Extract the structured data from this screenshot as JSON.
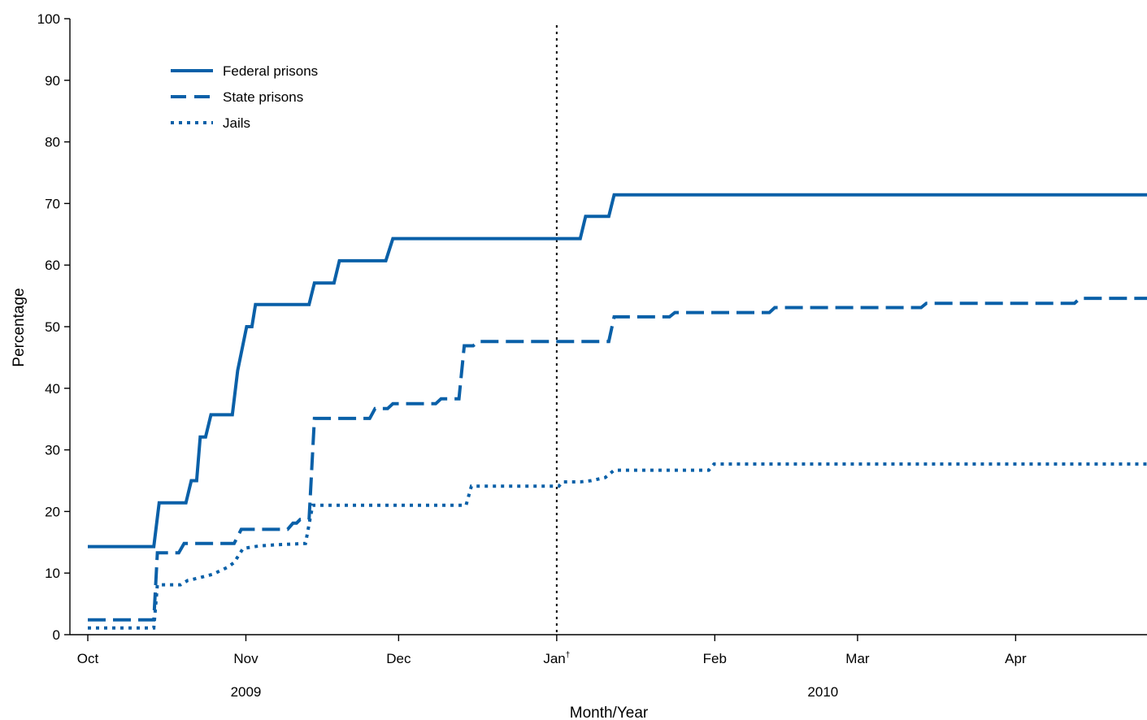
{
  "chart_data": {
    "type": "line",
    "title": "",
    "xlabel": "Month/Year",
    "ylabel": "Percentage",
    "ylim": [
      0,
      100
    ],
    "yticks": [
      0,
      10,
      20,
      30,
      40,
      50,
      60,
      70,
      80,
      90,
      100
    ],
    "grid": false,
    "legend_position": "top-left",
    "x_unit": "weeks from Oct 1, 2009",
    "xlim": [
      0,
      29.85
    ],
    "month_ticks": [
      {
        "label": "Oct",
        "x": 0
      },
      {
        "label": "Nov",
        "x": 4.43
      },
      {
        "label": "Dec",
        "x": 8.71
      },
      {
        "label": "Jan",
        "x": 13.14,
        "marker": "†"
      },
      {
        "label": "Feb",
        "x": 17.57
      },
      {
        "label": "Mar",
        "x": 21.57
      },
      {
        "label": "Apr",
        "x": 26.0
      }
    ],
    "year_labels": [
      {
        "label": "2009",
        "x": 4.43
      },
      {
        "label": "2010",
        "x": 20.6
      }
    ],
    "reference_line": {
      "x": 13.14,
      "style": "dotted"
    },
    "series": [
      {
        "name": "Federal prisons",
        "style": "solid",
        "color": "#0a60a8",
        "points": [
          [
            0,
            14.3
          ],
          [
            1.85,
            14.3
          ],
          [
            2.0,
            21.4
          ],
          [
            2.75,
            21.4
          ],
          [
            2.9,
            25.0
          ],
          [
            3.05,
            25.0
          ],
          [
            3.15,
            32.1
          ],
          [
            3.3,
            32.1
          ],
          [
            3.45,
            35.7
          ],
          [
            4.05,
            35.7
          ],
          [
            4.2,
            42.9
          ],
          [
            4.45,
            50.0
          ],
          [
            4.6,
            50.0
          ],
          [
            4.7,
            53.6
          ],
          [
            6.2,
            53.6
          ],
          [
            6.35,
            57.1
          ],
          [
            6.9,
            57.1
          ],
          [
            7.05,
            60.7
          ],
          [
            8.35,
            60.7
          ],
          [
            8.55,
            64.3
          ],
          [
            13.8,
            64.3
          ],
          [
            13.95,
            67.9
          ],
          [
            14.6,
            67.9
          ],
          [
            14.75,
            71.4
          ],
          [
            29.85,
            71.4
          ]
        ]
      },
      {
        "name": "State prisons",
        "style": "dashed",
        "color": "#0a60a8",
        "points": [
          [
            0,
            2.4
          ],
          [
            1.85,
            2.4
          ],
          [
            1.95,
            13.3
          ],
          [
            2.55,
            13.3
          ],
          [
            2.7,
            14.8
          ],
          [
            4.1,
            14.8
          ],
          [
            4.3,
            17.1
          ],
          [
            5.6,
            17.1
          ],
          [
            5.75,
            18.1
          ],
          [
            5.85,
            18.1
          ],
          [
            5.95,
            18.7
          ],
          [
            6.2,
            18.7
          ],
          [
            6.35,
            35.1
          ],
          [
            7.9,
            35.1
          ],
          [
            8.05,
            36.7
          ],
          [
            8.4,
            36.7
          ],
          [
            8.55,
            37.5
          ],
          [
            9.75,
            37.5
          ],
          [
            9.9,
            38.3
          ],
          [
            10.4,
            38.3
          ],
          [
            10.55,
            46.9
          ],
          [
            10.8,
            46.9
          ],
          [
            10.95,
            47.6
          ],
          [
            14.6,
            47.6
          ],
          [
            14.75,
            51.6
          ],
          [
            16.3,
            51.6
          ],
          [
            16.45,
            52.3
          ],
          [
            19.1,
            52.3
          ],
          [
            19.25,
            53.1
          ],
          [
            23.35,
            53.1
          ],
          [
            23.5,
            53.8
          ],
          [
            27.65,
            53.8
          ],
          [
            27.8,
            54.6
          ],
          [
            29.85,
            54.6
          ]
        ]
      },
      {
        "name": "Jails",
        "style": "dotted",
        "color": "#0a60a8",
        "points": [
          [
            0,
            1.1
          ],
          [
            1.85,
            1.1
          ],
          [
            1.95,
            8.1
          ],
          [
            2.6,
            8.1
          ],
          [
            2.8,
            8.8
          ],
          [
            3.1,
            9.2
          ],
          [
            3.5,
            9.8
          ],
          [
            3.9,
            10.9
          ],
          [
            4.1,
            11.7
          ],
          [
            4.35,
            14.0
          ],
          [
            4.8,
            14.4
          ],
          [
            5.3,
            14.6
          ],
          [
            6.1,
            14.8
          ],
          [
            6.3,
            21.0
          ],
          [
            10.6,
            21.0
          ],
          [
            10.75,
            24.1
          ],
          [
            13.2,
            24.1
          ],
          [
            13.3,
            24.8
          ],
          [
            13.5,
            24.8
          ],
          [
            13.8,
            24.8
          ],
          [
            14.1,
            25.0
          ],
          [
            14.5,
            25.5
          ],
          [
            14.75,
            26.7
          ],
          [
            17.4,
            26.7
          ],
          [
            17.55,
            27.7
          ],
          [
            29.85,
            27.7
          ]
        ]
      }
    ]
  }
}
